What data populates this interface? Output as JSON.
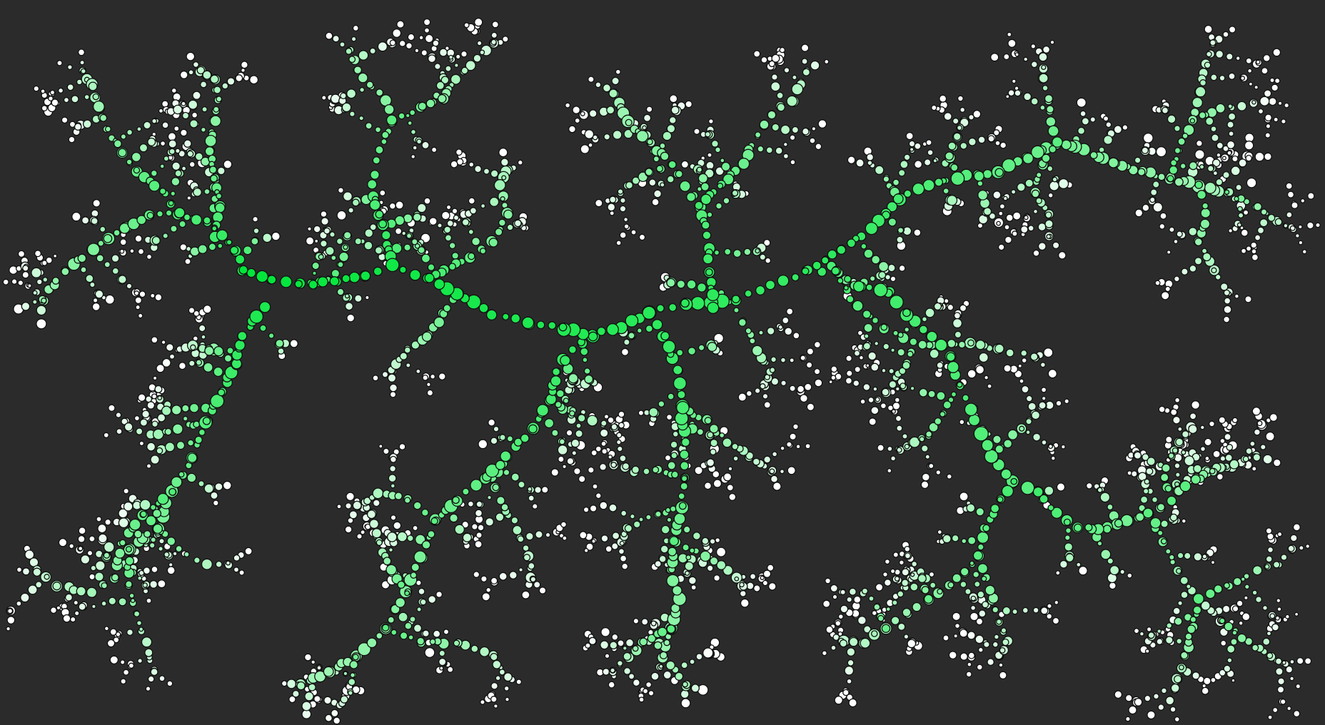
{
  "scene": {
    "description_text": "",
    "background_color": "#2b2b2b",
    "node_outline_color": "#111111",
    "trunk_color": "#00e63a",
    "tip_color": "#ffffff",
    "structure": "branching-particle-dendrite"
  }
}
